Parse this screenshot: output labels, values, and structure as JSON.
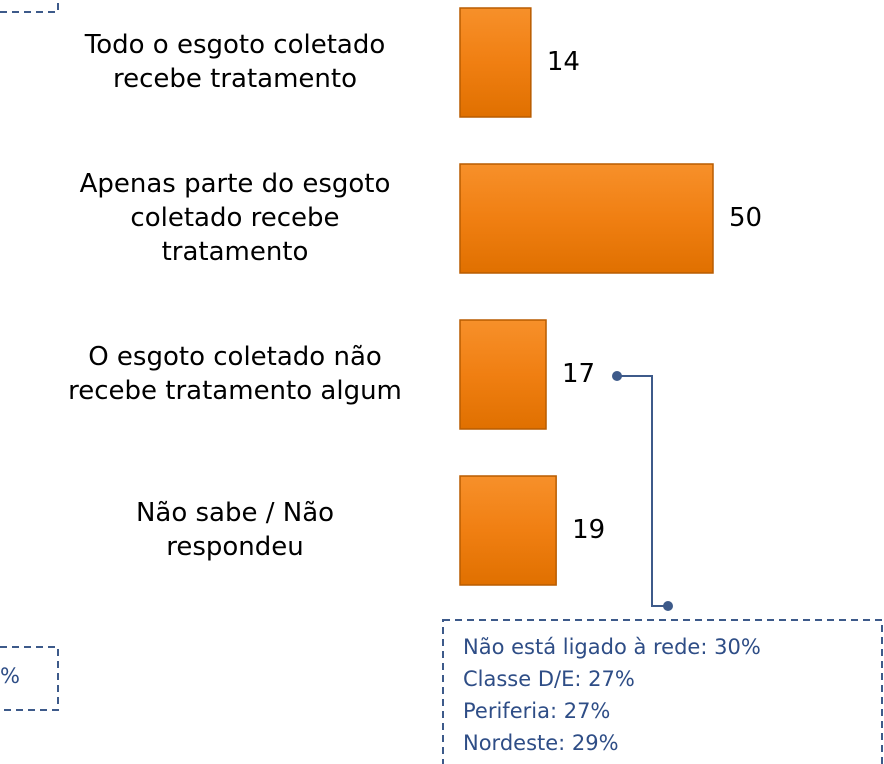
{
  "chart_data": {
    "type": "bar",
    "orientation": "horizontal",
    "categories": [
      [
        "Todo o esgoto coletado",
        "recebe tratamento"
      ],
      [
        "Apenas parte do esgoto",
        "coletado recebe",
        "tratamento"
      ],
      [
        "O esgoto coletado não",
        "recebe tratamento algum"
      ],
      [
        "Não sabe / Não",
        "respondeu"
      ]
    ],
    "values": [
      14,
      50,
      17,
      19
    ],
    "color": "#f07f12",
    "annotations": [
      {
        "lines": [
          "Não está ligado à rede: 30%",
          "Classe D/E: 27%",
          "Periferia: 27%",
          "Nordeste: 29%"
        ]
      },
      {
        "lines": [
          "%"
        ]
      }
    ]
  }
}
